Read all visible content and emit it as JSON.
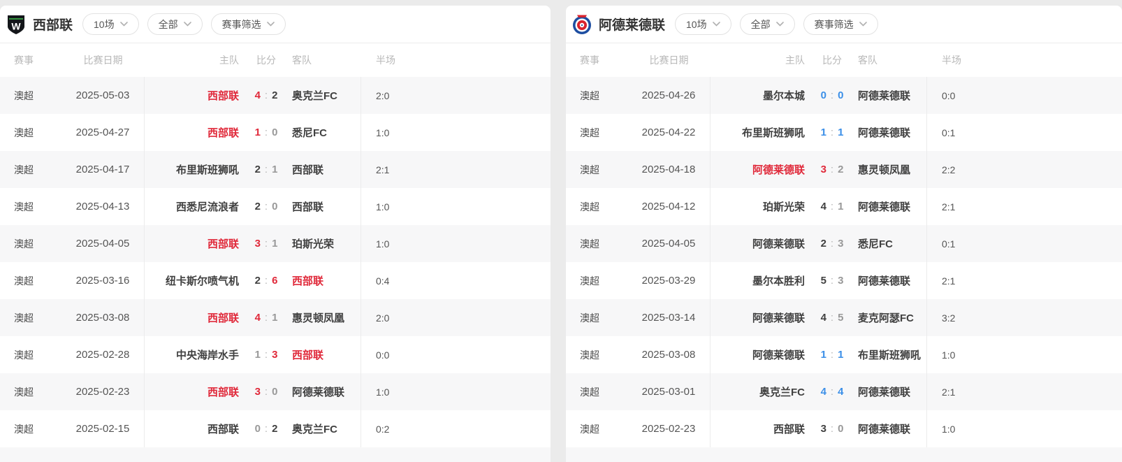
{
  "colors": {
    "win_red": "#e0293a",
    "draw_blue": "#3b8fe8",
    "text_dark": "#404040",
    "text_gray": "#999999",
    "stripe_gray": "#f7f7f8"
  },
  "filters": {
    "matches": "10场",
    "scope": "全部",
    "competition": "赛事筛选"
  },
  "columns": {
    "competition": "赛事",
    "date": "比赛日期",
    "home": "主队",
    "score": "比分",
    "away": "客队",
    "half": "半场"
  },
  "panels": [
    {
      "team": "西部联",
      "logo": "western-united-badge",
      "rows": [
        {
          "competition": "澳超",
          "date": "2025-05-03",
          "home": "西部联",
          "home_color": "red",
          "home_score": "4",
          "home_score_color": "red",
          "away_score": "2",
          "away_score_color": "dark",
          "away": "奥克兰FC",
          "away_color": "dark",
          "half": "2:0"
        },
        {
          "competition": "澳超",
          "date": "2025-04-27",
          "home": "西部联",
          "home_color": "red",
          "home_score": "1",
          "home_score_color": "red",
          "away_score": "0",
          "away_score_color": "gray",
          "away": "悉尼FC",
          "away_color": "dark",
          "half": "1:0"
        },
        {
          "competition": "澳超",
          "date": "2025-04-17",
          "home": "布里斯班狮吼",
          "home_color": "dark",
          "home_score": "2",
          "home_score_color": "dark",
          "away_score": "1",
          "away_score_color": "gray",
          "away": "西部联",
          "away_color": "dark",
          "half": "2:1"
        },
        {
          "competition": "澳超",
          "date": "2025-04-13",
          "home": "西悉尼流浪者",
          "home_color": "dark",
          "home_score": "2",
          "home_score_color": "dark",
          "away_score": "0",
          "away_score_color": "gray",
          "away": "西部联",
          "away_color": "dark",
          "half": "1:0"
        },
        {
          "competition": "澳超",
          "date": "2025-04-05",
          "home": "西部联",
          "home_color": "red",
          "home_score": "3",
          "home_score_color": "red",
          "away_score": "1",
          "away_score_color": "gray",
          "away": "珀斯光荣",
          "away_color": "dark",
          "half": "1:0"
        },
        {
          "competition": "澳超",
          "date": "2025-03-16",
          "home": "纽卡斯尔喷气机",
          "home_color": "dark",
          "home_score": "2",
          "home_score_color": "dark",
          "away_score": "6",
          "away_score_color": "red",
          "away": "西部联",
          "away_color": "red",
          "half": "0:4"
        },
        {
          "competition": "澳超",
          "date": "2025-03-08",
          "home": "西部联",
          "home_color": "red",
          "home_score": "4",
          "home_score_color": "red",
          "away_score": "1",
          "away_score_color": "gray",
          "away": "惠灵顿凤凰",
          "away_color": "dark",
          "half": "2:0"
        },
        {
          "competition": "澳超",
          "date": "2025-02-28",
          "home": "中央海岸水手",
          "home_color": "dark",
          "home_score": "1",
          "home_score_color": "gray",
          "away_score": "3",
          "away_score_color": "red",
          "away": "西部联",
          "away_color": "red",
          "half": "0:0"
        },
        {
          "competition": "澳超",
          "date": "2025-02-23",
          "home": "西部联",
          "home_color": "red",
          "home_score": "3",
          "home_score_color": "red",
          "away_score": "0",
          "away_score_color": "gray",
          "away": "阿德莱德联",
          "away_color": "dark",
          "half": "1:0"
        },
        {
          "competition": "澳超",
          "date": "2025-02-15",
          "home": "西部联",
          "home_color": "dark",
          "home_score": "0",
          "home_score_color": "gray",
          "away_score": "2",
          "away_score_color": "dark",
          "away": "奥克兰FC",
          "away_color": "dark",
          "half": "0:2"
        }
      ]
    },
    {
      "team": "阿德莱德联",
      "logo": "adelaide-united-badge",
      "rows": [
        {
          "competition": "澳超",
          "date": "2025-04-26",
          "home": "墨尔本城",
          "home_color": "dark",
          "home_score": "0",
          "home_score_color": "blue",
          "away_score": "0",
          "away_score_color": "blue",
          "away": "阿德莱德联",
          "away_color": "dark",
          "half": "0:0"
        },
        {
          "competition": "澳超",
          "date": "2025-04-22",
          "home": "布里斯班狮吼",
          "home_color": "dark",
          "home_score": "1",
          "home_score_color": "blue",
          "away_score": "1",
          "away_score_color": "blue",
          "away": "阿德莱德联",
          "away_color": "dark",
          "half": "0:1"
        },
        {
          "competition": "澳超",
          "date": "2025-04-18",
          "home": "阿德莱德联",
          "home_color": "red",
          "home_score": "3",
          "home_score_color": "red",
          "away_score": "2",
          "away_score_color": "gray",
          "away": "惠灵顿凤凰",
          "away_color": "dark",
          "half": "2:2"
        },
        {
          "competition": "澳超",
          "date": "2025-04-12",
          "home": "珀斯光荣",
          "home_color": "dark",
          "home_score": "4",
          "home_score_color": "dark",
          "away_score": "1",
          "away_score_color": "gray",
          "away": "阿德莱德联",
          "away_color": "dark",
          "half": "2:1"
        },
        {
          "competition": "澳超",
          "date": "2025-04-05",
          "home": "阿德莱德联",
          "home_color": "dark",
          "home_score": "2",
          "home_score_color": "dark",
          "away_score": "3",
          "away_score_color": "gray",
          "away": "悉尼FC",
          "away_color": "dark",
          "half": "0:1"
        },
        {
          "competition": "澳超",
          "date": "2025-03-29",
          "home": "墨尔本胜利",
          "home_color": "dark",
          "home_score": "5",
          "home_score_color": "dark",
          "away_score": "3",
          "away_score_color": "gray",
          "away": "阿德莱德联",
          "away_color": "dark",
          "half": "2:1"
        },
        {
          "competition": "澳超",
          "date": "2025-03-14",
          "home": "阿德莱德联",
          "home_color": "dark",
          "home_score": "4",
          "home_score_color": "dark",
          "away_score": "5",
          "away_score_color": "gray",
          "away": "麦克阿瑟FC",
          "away_color": "dark",
          "half": "3:2"
        },
        {
          "competition": "澳超",
          "date": "2025-03-08",
          "home": "阿德莱德联",
          "home_color": "dark",
          "home_score": "1",
          "home_score_color": "blue",
          "away_score": "1",
          "away_score_color": "blue",
          "away": "布里斯班狮吼",
          "away_color": "dark",
          "half": "1:0"
        },
        {
          "competition": "澳超",
          "date": "2025-03-01",
          "home": "奥克兰FC",
          "home_color": "dark",
          "home_score": "4",
          "home_score_color": "blue",
          "away_score": "4",
          "away_score_color": "blue",
          "away": "阿德莱德联",
          "away_color": "dark",
          "half": "2:1"
        },
        {
          "competition": "澳超",
          "date": "2025-02-23",
          "home": "西部联",
          "home_color": "dark",
          "home_score": "3",
          "home_score_color": "dark",
          "away_score": "0",
          "away_score_color": "gray",
          "away": "阿德莱德联",
          "away_color": "dark",
          "half": "1:0"
        }
      ]
    }
  ]
}
